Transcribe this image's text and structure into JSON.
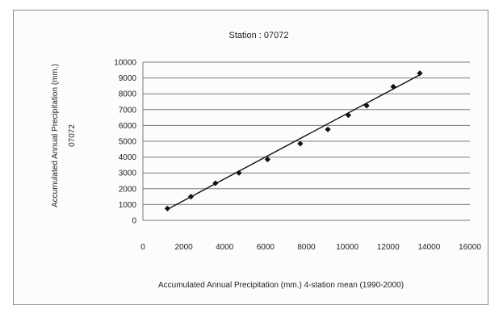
{
  "chart_data": {
    "type": "scatter",
    "title": "Station : 07072",
    "xlabel": "Accumulated Annual Precipitation (mm.) 4-station mean (1990-2000)",
    "ylabel_line1": "Accumulated Annual Precipitation (mm.)",
    "ylabel_line2": "07072",
    "xlim": [
      0,
      16000
    ],
    "ylim": [
      0,
      10000
    ],
    "x_ticks": [
      "0",
      "2000",
      "4000",
      "6000",
      "8000",
      "10000",
      "12000",
      "14000",
      "16000"
    ],
    "y_ticks": [
      "0",
      "1000",
      "2000",
      "3000",
      "4000",
      "5000",
      "6000",
      "7000",
      "8000",
      "9000",
      "10000"
    ],
    "grid": "horizontal",
    "series": [
      {
        "marker": "diamond",
        "points": [
          {
            "x": 1200,
            "y": 750
          },
          {
            "x": 2350,
            "y": 1500
          },
          {
            "x": 3550,
            "y": 2350
          },
          {
            "x": 4700,
            "y": 3000
          },
          {
            "x": 6100,
            "y": 3850
          },
          {
            "x": 7700,
            "y": 4850
          },
          {
            "x": 9050,
            "y": 5750
          },
          {
            "x": 10050,
            "y": 6650
          },
          {
            "x": 10950,
            "y": 7250
          },
          {
            "x": 12250,
            "y": 8450
          },
          {
            "x": 13550,
            "y": 9300
          }
        ]
      }
    ],
    "trendline": {
      "type": "linear",
      "x_start": 1200,
      "y_start": 700,
      "x_end": 13550,
      "y_end": 9200
    },
    "colors": {
      "marker": "#111111",
      "line": "#111111",
      "grid": "#7a7a7a"
    }
  }
}
